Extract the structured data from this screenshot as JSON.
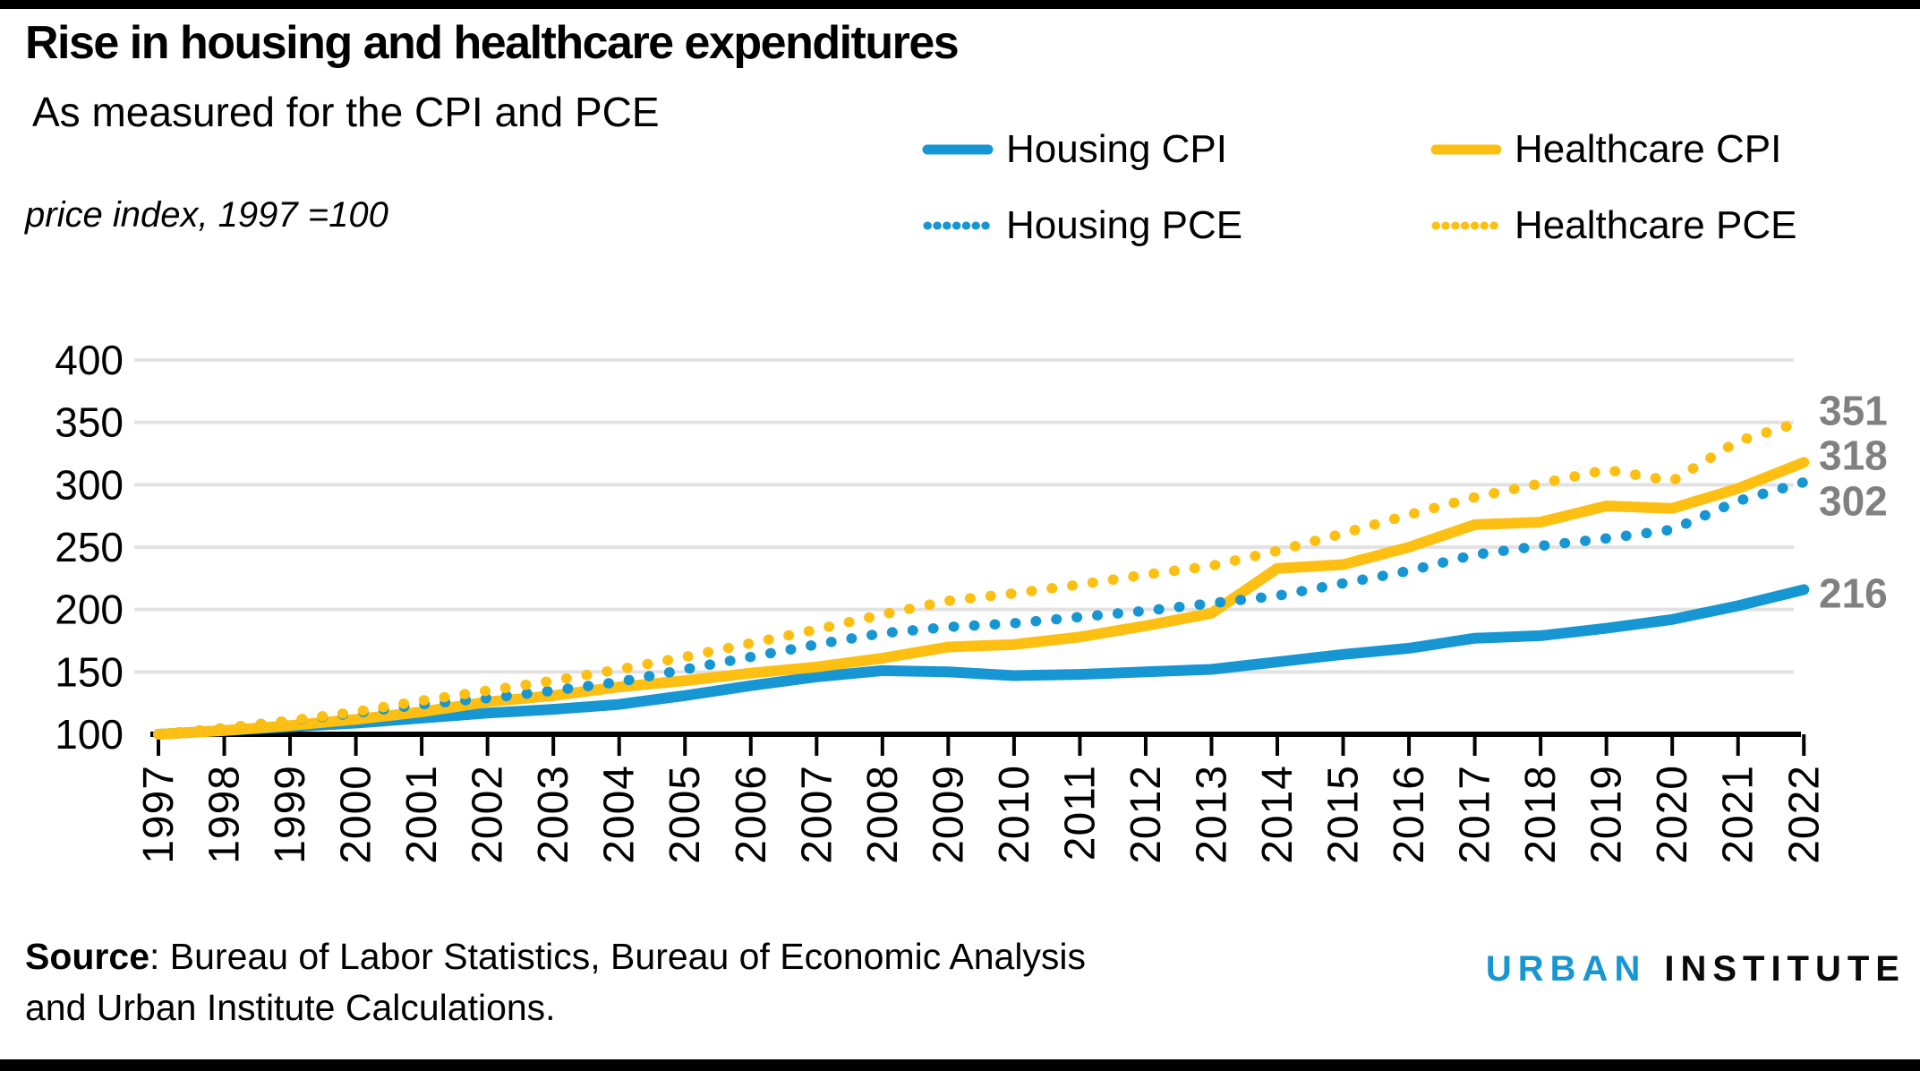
{
  "header": {
    "title": "Rise in housing and healthcare expenditures",
    "subtitle": "As measured for the CPI and PCE"
  },
  "axis_note": "price index, 1997 =100",
  "colors": {
    "blue": "#1696d2",
    "yellow": "#fdbf11",
    "grid": "#e2e2e2",
    "axis": "#000000",
    "end_label": "#808080"
  },
  "chart_data": {
    "type": "line",
    "title": "Rise in housing and healthcare expenditures",
    "subtitle": "As measured for the CPI and PCE",
    "ylabel": "price index, 1997 =100",
    "ylim": [
      100,
      400
    ],
    "yticks": [
      100,
      150,
      200,
      250,
      300,
      350,
      400
    ],
    "grid": true,
    "legend_position": "top-right",
    "x": [
      1997,
      1998,
      1999,
      2000,
      2001,
      2002,
      2003,
      2004,
      2005,
      2006,
      2007,
      2008,
      2009,
      2010,
      2011,
      2012,
      2013,
      2014,
      2015,
      2016,
      2017,
      2018,
      2019,
      2020,
      2021,
      2022
    ],
    "series": [
      {
        "name": "Housing CPI",
        "style": "solid",
        "color": "#1696d2",
        "end_label": 216,
        "values": [
          100,
          103,
          106,
          109,
          113,
          117,
          120,
          124,
          131,
          139,
          146,
          151,
          150,
          147,
          148,
          150,
          152,
          158,
          164,
          169,
          177,
          179,
          185,
          192,
          203,
          216
        ]
      },
      {
        "name": "Healthcare CPI",
        "style": "solid",
        "color": "#fdbf11",
        "end_label": 318,
        "values": [
          100,
          103,
          107,
          112,
          118,
          126,
          131,
          138,
          143,
          149,
          154,
          161,
          170,
          172,
          178,
          187,
          197,
          233,
          236,
          250,
          268,
          270,
          283,
          281,
          297,
          318
        ]
      },
      {
        "name": "Housing PCE",
        "style": "dotted",
        "color": "#1696d2",
        "end_label": 302,
        "values": [
          100,
          105,
          111,
          117,
          124,
          129,
          135,
          142,
          152,
          162,
          172,
          181,
          186,
          189,
          194,
          199,
          205,
          211,
          221,
          231,
          244,
          251,
          257,
          264,
          287,
          302
        ]
      },
      {
        "name": "Healthcare PCE",
        "style": "dotted",
        "color": "#fdbf11",
        "end_label": 351,
        "values": [
          100,
          105,
          111,
          118,
          127,
          135,
          143,
          152,
          162,
          173,
          184,
          196,
          207,
          213,
          220,
          228,
          235,
          247,
          261,
          276,
          290,
          301,
          312,
          303,
          335,
          351
        ]
      }
    ]
  },
  "footer": {
    "source_label": "Source",
    "source_line1_rest": ": Bureau of Labor Statistics, Bureau of Economic Analysis",
    "source_line2": "and Urban Institute Calculations.",
    "logo_word1": "URBAN",
    "logo_word2": "INSTITUTE"
  }
}
